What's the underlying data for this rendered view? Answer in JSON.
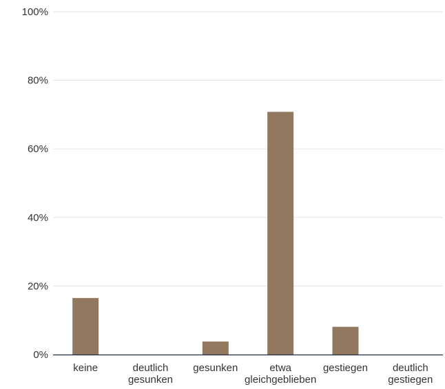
{
  "colors": {
    "bar": "#91785E",
    "grid": "#e3e3e3",
    "axis": "#1f2a44",
    "text": "#333333"
  },
  "chart_data": {
    "type": "bar",
    "title": "",
    "xlabel": "",
    "ylabel": "",
    "categories": [
      [
        "keine"
      ],
      [
        "deutlich",
        "gesunken"
      ],
      [
        "gesunken"
      ],
      [
        "etwa",
        "gleichgeblieben"
      ],
      [
        "gestiegen"
      ],
      [
        "deutlich",
        "gestiegen"
      ]
    ],
    "values": [
      16.5,
      0,
      3.8,
      70.8,
      8.1,
      0
    ],
    "ylim": [
      0,
      100
    ],
    "yticks": [
      0,
      20,
      40,
      60,
      80,
      100
    ],
    "ytick_labels": [
      "0%",
      "20%",
      "40%",
      "60%",
      "80%",
      "100%"
    ],
    "grid": true
  }
}
